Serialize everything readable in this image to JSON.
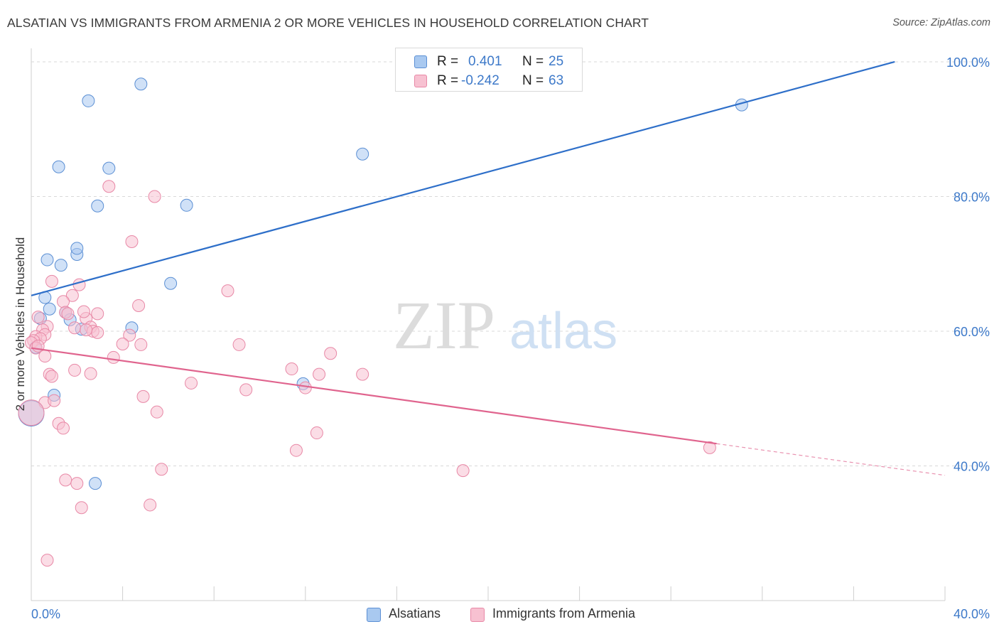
{
  "header": {
    "title": "ALSATIAN VS IMMIGRANTS FROM ARMENIA 2 OR MORE VEHICLES IN HOUSEHOLD CORRELATION CHART",
    "source": "Source: ZipAtlas.com"
  },
  "watermark": {
    "zip": "ZIP",
    "atlas": "atlas"
  },
  "legend_top": {
    "rows": [
      {
        "r_label": "R =",
        "r_value": "0.401",
        "n_label": "N =",
        "n_value": "25"
      },
      {
        "r_label": "R =",
        "r_value": "-0.242",
        "n_label": "N =",
        "n_value": "63"
      }
    ]
  },
  "legend_bottom": {
    "items": [
      "Alsatians",
      "Immigrants from Armenia"
    ]
  },
  "colors": {
    "blue_fill": "#a9c9f0",
    "blue_stroke": "#5b8fd4",
    "blue_line": "#2e6fc9",
    "pink_fill": "#f7c1d1",
    "pink_stroke": "#e888a6",
    "pink_line": "#e0648e",
    "axis_label": "#3d79c9",
    "grid": "#d9d9d9"
  },
  "chart_data": {
    "type": "scatter",
    "title": "ALSATIAN VS IMMIGRANTS FROM ARMENIA 2 OR MORE VEHICLES IN HOUSEHOLD CORRELATION CHART",
    "xlabel": "",
    "ylabel": "2 or more Vehicles in Household",
    "xlim": [
      0,
      40
    ],
    "ylim": [
      20,
      102
    ],
    "x_tick_labels": [
      "0.0%",
      "40.0%"
    ],
    "y_ticks": [
      40,
      60,
      80,
      100
    ],
    "y_tick_labels": [
      "40.0%",
      "60.0%",
      "80.0%",
      "100.0%"
    ],
    "grid": true,
    "legend_position": "top-center",
    "series": [
      {
        "name": "Alsatians",
        "R": 0.401,
        "N": 25,
        "points": [
          [
            4.8,
            96.7
          ],
          [
            2.5,
            94.2
          ],
          [
            1.2,
            84.4
          ],
          [
            3.4,
            84.2
          ],
          [
            14.5,
            86.3
          ],
          [
            31.1,
            93.6
          ],
          [
            2.9,
            78.6
          ],
          [
            6.8,
            78.7
          ],
          [
            0.7,
            70.6
          ],
          [
            2.0,
            71.4
          ],
          [
            2.0,
            72.3
          ],
          [
            1.3,
            69.8
          ],
          [
            6.1,
            67.1
          ],
          [
            0.6,
            65.0
          ],
          [
            0.8,
            63.3
          ],
          [
            1.5,
            62.8
          ],
          [
            1.7,
            61.7
          ],
          [
            0.4,
            61.9
          ],
          [
            2.2,
            60.3
          ],
          [
            4.4,
            60.5
          ],
          [
            0.2,
            57.6
          ],
          [
            11.9,
            52.2
          ],
          [
            1.0,
            50.5
          ],
          [
            2.8,
            37.4
          ],
          [
            0.0,
            47.8
          ]
        ],
        "trend_line": [
          [
            0.0,
            65.3
          ],
          [
            37.8,
            100.0
          ]
        ]
      },
      {
        "name": "Immigrants from Armenia",
        "R": -0.242,
        "N": 63,
        "points": [
          [
            3.4,
            81.5
          ],
          [
            5.4,
            80.0
          ],
          [
            4.4,
            73.3
          ],
          [
            0.9,
            67.4
          ],
          [
            2.1,
            66.9
          ],
          [
            8.6,
            66.0
          ],
          [
            1.8,
            65.3
          ],
          [
            1.4,
            64.4
          ],
          [
            4.7,
            63.8
          ],
          [
            1.5,
            62.8
          ],
          [
            1.6,
            62.6
          ],
          [
            2.9,
            62.6
          ],
          [
            0.3,
            62.1
          ],
          [
            2.4,
            61.9
          ],
          [
            1.9,
            60.5
          ],
          [
            2.6,
            60.6
          ],
          [
            0.7,
            60.7
          ],
          [
            0.5,
            60.2
          ],
          [
            2.7,
            60.0
          ],
          [
            2.9,
            59.8
          ],
          [
            2.4,
            60.2
          ],
          [
            0.6,
            59.5
          ],
          [
            0.2,
            59.2
          ],
          [
            0.4,
            58.9
          ],
          [
            4.3,
            59.4
          ],
          [
            0.1,
            58.6
          ],
          [
            0.0,
            58.3
          ],
          [
            0.2,
            57.5
          ],
          [
            4.0,
            58.1
          ],
          [
            4.8,
            58.0
          ],
          [
            9.1,
            58.0
          ],
          [
            0.6,
            56.3
          ],
          [
            3.6,
            56.1
          ],
          [
            13.1,
            56.7
          ],
          [
            1.9,
            54.2
          ],
          [
            0.8,
            53.6
          ],
          [
            0.9,
            53.3
          ],
          [
            2.6,
            53.7
          ],
          [
            11.4,
            54.4
          ],
          [
            12.6,
            53.6
          ],
          [
            14.5,
            53.6
          ],
          [
            7.0,
            52.3
          ],
          [
            9.4,
            51.3
          ],
          [
            12.0,
            51.6
          ],
          [
            4.9,
            50.3
          ],
          [
            0.6,
            49.4
          ],
          [
            1.0,
            49.7
          ],
          [
            5.5,
            48.0
          ],
          [
            1.2,
            46.3
          ],
          [
            1.4,
            45.6
          ],
          [
            12.5,
            44.9
          ],
          [
            11.6,
            42.3
          ],
          [
            29.7,
            42.7
          ],
          [
            5.7,
            39.5
          ],
          [
            18.9,
            39.3
          ],
          [
            1.5,
            37.9
          ],
          [
            2.0,
            37.4
          ],
          [
            5.2,
            34.2
          ],
          [
            2.2,
            33.8
          ],
          [
            0.7,
            26.0
          ],
          [
            0.0,
            47.9
          ],
          [
            0.3,
            57.8
          ],
          [
            2.3,
            62.9
          ]
        ],
        "trend_line": [
          [
            0.0,
            57.5
          ],
          [
            30.0,
            43.3
          ]
        ],
        "trend_line_dashed": [
          [
            30.0,
            43.3
          ],
          [
            40.0,
            38.6
          ]
        ]
      }
    ]
  }
}
